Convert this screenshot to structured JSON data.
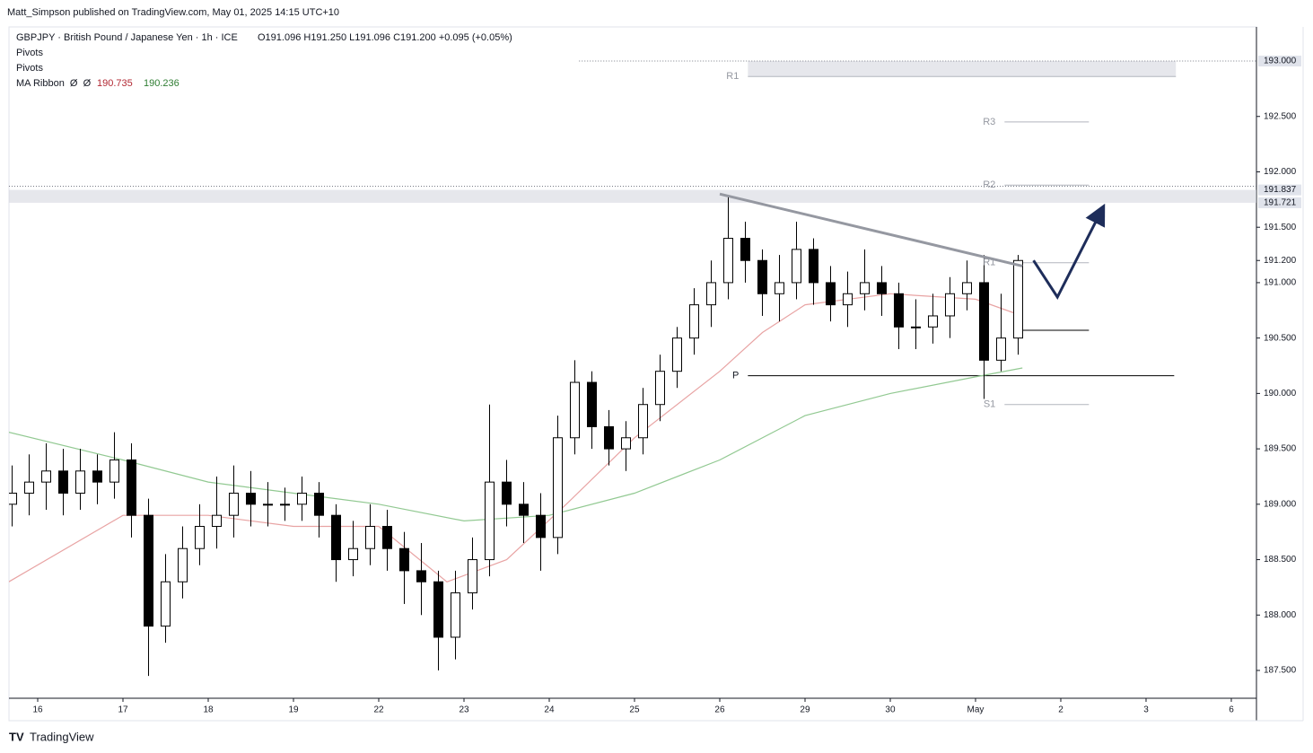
{
  "byline": "Matt_Simpson published on TradingView.com, May 01, 2025 14:15 UTC+10",
  "footer": "TradingView",
  "chart_data": {
    "type": "candlestick",
    "title": "GBPJPY · British Pound / Japanese Yen · 1h · ICE",
    "ohlc_text": "O191.096 H191.250 L191.096 C191.200 +0.095 (+0.05%)",
    "indicators": [
      "Pivots",
      "Pivots"
    ],
    "ma_label": "MA Ribbon  Ø  Ø",
    "ma_values": [
      190.735,
      190.236
    ],
    "up_color": "#ffffff",
    "down_color": "#000000",
    "edge_color": "#000000",
    "xlim": [
      -0.337,
      14.295
    ],
    "xticks": [
      {
        "value": 0,
        "label": "16"
      },
      {
        "value": 1,
        "label": "17"
      },
      {
        "value": 2,
        "label": "18"
      },
      {
        "value": 3,
        "label": "19"
      },
      {
        "value": 4,
        "label": "22"
      },
      {
        "value": 5,
        "label": "23"
      },
      {
        "value": 6,
        "label": "24"
      },
      {
        "value": 7,
        "label": "25"
      },
      {
        "value": 8,
        "label": "26"
      },
      {
        "value": 9,
        "label": "29"
      },
      {
        "value": 10,
        "label": "30"
      },
      {
        "value": 11,
        "label": "May"
      },
      {
        "value": 12,
        "label": "2"
      },
      {
        "value": 13,
        "label": "3"
      },
      {
        "value": 14,
        "label": "6"
      }
    ],
    "ylim": [
      187.249,
      193.308
    ],
    "yticks": [
      {
        "value": 187.5,
        "label": "187.500"
      },
      {
        "value": 188,
        "label": "188.000"
      },
      {
        "value": 188.5,
        "label": "188.500"
      },
      {
        "value": 189,
        "label": "189.000"
      },
      {
        "value": 189.5,
        "label": "189.500"
      },
      {
        "value": 190,
        "label": "190.000"
      },
      {
        "value": 190.5,
        "label": "190.500"
      },
      {
        "value": 191,
        "label": "191.000"
      },
      {
        "value": 191.2,
        "label": "191.200"
      },
      {
        "value": 191.5,
        "label": "191.500"
      },
      {
        "value": 192,
        "label": "192.000"
      },
      {
        "value": 192.5,
        "label": "192.500"
      }
    ],
    "price_labels": [
      {
        "value": 193.0,
        "label": "193.000"
      },
      {
        "value": 191.837,
        "label": "191.837"
      },
      {
        "value": 191.721,
        "label": "191.721"
      }
    ],
    "x": [
      -0.3,
      -0.1,
      0.1,
      0.3,
      0.5,
      0.7,
      0.9,
      1.1,
      1.3,
      1.5,
      1.7,
      1.9,
      2.1,
      2.3,
      2.5,
      2.7,
      2.9,
      3.1,
      3.3,
      3.5,
      3.7,
      3.9,
      4.1,
      4.3,
      4.5,
      4.7,
      4.9,
      5.1,
      5.3,
      5.5,
      5.7,
      5.9,
      6.1,
      6.3,
      6.5,
      6.7,
      6.9,
      7.1,
      7.3,
      7.5,
      7.7,
      7.9,
      8.1,
      8.3,
      8.5,
      8.7,
      8.9,
      9.1,
      9.3,
      9.5,
      9.7,
      9.9,
      10.1,
      10.3,
      10.5,
      10.7,
      10.9,
      11.1,
      11.3,
      11.5
    ],
    "open": [
      189.0,
      189.1,
      189.2,
      189.3,
      189.1,
      189.3,
      189.2,
      189.4,
      188.9,
      187.9,
      188.3,
      188.6,
      188.8,
      188.9,
      189.1,
      189.0,
      189.0,
      189.0,
      189.1,
      188.9,
      188.5,
      188.6,
      188.8,
      188.6,
      188.4,
      188.3,
      187.8,
      188.2,
      188.5,
      189.2,
      189.0,
      188.9,
      188.7,
      189.6,
      190.1,
      189.7,
      189.5,
      189.6,
      189.9,
      190.2,
      190.5,
      190.8,
      191.0,
      191.4,
      191.2,
      190.9,
      191.0,
      191.3,
      191.0,
      190.8,
      190.9,
      191.0,
      190.9,
      190.6,
      190.6,
      190.7,
      190.9,
      191.0,
      190.3,
      190.5
    ],
    "high": [
      189.35,
      189.45,
      189.55,
      189.5,
      189.5,
      189.45,
      189.65,
      189.55,
      189.05,
      188.55,
      188.8,
      189.0,
      189.25,
      189.35,
      189.3,
      189.2,
      189.15,
      189.25,
      189.2,
      189.0,
      188.85,
      189.0,
      188.95,
      188.75,
      188.65,
      188.4,
      188.4,
      188.7,
      189.9,
      189.4,
      189.2,
      189.1,
      189.8,
      190.3,
      190.2,
      189.85,
      189.75,
      190.05,
      190.35,
      190.6,
      190.95,
      191.2,
      191.78,
      191.55,
      191.3,
      191.25,
      191.55,
      191.4,
      191.15,
      191.1,
      191.3,
      191.15,
      191.0,
      190.85,
      190.9,
      191.05,
      191.2,
      191.25,
      190.9,
      191.25
    ],
    "low": [
      188.8,
      188.9,
      188.95,
      188.9,
      188.95,
      189.0,
      189.05,
      188.7,
      187.45,
      187.75,
      188.15,
      188.45,
      188.6,
      188.7,
      188.8,
      188.8,
      188.85,
      188.85,
      188.7,
      188.3,
      188.35,
      188.45,
      188.4,
      188.1,
      188.0,
      187.5,
      187.6,
      188.05,
      188.35,
      188.8,
      188.65,
      188.4,
      188.55,
      189.45,
      189.5,
      189.35,
      189.3,
      189.45,
      189.75,
      190.05,
      190.35,
      190.6,
      190.85,
      191.0,
      190.7,
      190.65,
      190.85,
      190.8,
      190.65,
      190.6,
      190.75,
      190.7,
      190.4,
      190.4,
      190.45,
      190.5,
      190.75,
      189.95,
      190.2,
      190.35
    ],
    "close": [
      189.1,
      189.2,
      189.3,
      189.1,
      189.3,
      189.2,
      189.4,
      188.9,
      187.9,
      188.3,
      188.6,
      188.8,
      188.9,
      189.1,
      189.0,
      189.0,
      189.0,
      189.1,
      188.9,
      188.5,
      188.6,
      188.8,
      188.6,
      188.4,
      188.3,
      187.8,
      188.2,
      188.5,
      189.2,
      189.0,
      188.9,
      188.7,
      189.6,
      190.1,
      189.7,
      189.5,
      189.6,
      189.9,
      190.2,
      190.5,
      190.8,
      191.0,
      191.4,
      191.2,
      190.9,
      191.0,
      191.3,
      191.0,
      190.8,
      190.9,
      191.0,
      190.9,
      190.6,
      190.6,
      190.7,
      190.9,
      191.0,
      190.3,
      190.5,
      191.2
    ],
    "series": [
      {
        "color": "#e8a3a3",
        "x": [
          -0.34,
          1,
          2,
          3,
          4,
          4.8,
          5.5,
          6.2,
          7,
          8,
          8.5,
          9,
          10,
          11,
          11.55
        ],
        "values": [
          188.3,
          188.9,
          188.9,
          188.8,
          188.8,
          188.3,
          188.5,
          189.0,
          189.6,
          190.2,
          190.55,
          190.8,
          190.9,
          190.85,
          190.7
        ]
      },
      {
        "color": "#92c992",
        "x": [
          -0.34,
          1,
          2,
          3,
          4,
          5,
          6,
          7,
          8,
          9,
          10,
          11,
          11.55
        ],
        "values": [
          189.65,
          189.4,
          189.2,
          189.1,
          189.0,
          188.85,
          188.9,
          189.1,
          189.4,
          189.8,
          190.0,
          190.15,
          190.23
        ]
      }
    ],
    "zones": [
      {
        "from": 191.721,
        "to": 191.837,
        "x": [
          -0.337,
          14.295
        ]
      },
      {
        "from": 192.86,
        "to": 193.0,
        "x": [
          8.33,
          13.35
        ]
      }
    ],
    "dotted_levels": [
      {
        "value": 193.0,
        "x": [
          6.35,
          14.295
        ]
      },
      {
        "value": 191.87,
        "x": [
          -0.337,
          14.295
        ]
      }
    ],
    "pivots": [
      {
        "label": "R1",
        "value": 192.86,
        "x": [
          8.33,
          13.35
        ],
        "color": "#b2b5be"
      },
      {
        "label": "P",
        "value": 190.16,
        "x": [
          8.33,
          13.33
        ],
        "color": "#000000"
      },
      {
        "label": "R3",
        "value": 192.45,
        "x": [
          11.34,
          12.33
        ],
        "color": "#b2b5be"
      },
      {
        "label": "R2",
        "value": 191.88,
        "x": [
          11.34,
          12.33
        ],
        "color": "#b2b5be"
      },
      {
        "label": "R1",
        "value": 191.18,
        "x": [
          11.34,
          12.33
        ],
        "color": "#b2b5be"
      },
      {
        "label": "S1",
        "value": 189.9,
        "x": [
          11.34,
          12.33
        ],
        "color": "#b2b5be"
      }
    ],
    "level_line": {
      "value": 190.57,
      "x": [
        11.55,
        12.33
      ]
    },
    "trendline": {
      "x": [
        8.0,
        11.55
      ],
      "values": [
        191.8,
        191.15
      ]
    },
    "arrow": {
      "x": [
        11.68,
        11.96,
        12.49
      ],
      "values": [
        191.2,
        190.87,
        191.67
      ]
    }
  }
}
